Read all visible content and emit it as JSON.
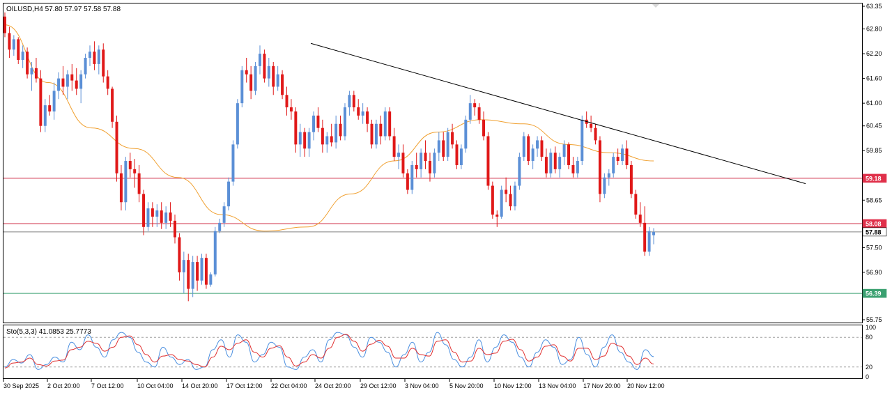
{
  "header": {
    "symbol_line": "OILUSD,H4  57.80 57.97 57.58 57.88",
    "indicator_line": "Sto(5,3,3) 41.0853 25.7773"
  },
  "colors": {
    "bull": "#5b8fd6",
    "bear": "#e01818",
    "ma": "#f0a030",
    "trendline": "#000000",
    "resistance_line": "#d0304a",
    "support_line": "#3aa070",
    "stoch_main": "#4a8fe0",
    "stoch_signal": "#e03030",
    "level_tag_red": "#e0304a",
    "level_tag_green": "#3aa070"
  },
  "chart_data": [
    {
      "type": "candlestick",
      "symbol": "OILUSD",
      "timeframe": "H4",
      "ylim": [
        55.75,
        63.35
      ],
      "y_ticks": [
        "63.35",
        "62.80",
        "62.20",
        "61.60",
        "61.00",
        "60.45",
        "59.85",
        "58.65",
        "57.50",
        "56.90",
        "55.75"
      ],
      "x_ticks": [
        "30 Sep 2025",
        "2 Oct 20:00",
        "7 Oct 12:00",
        "10 Oct 04:00",
        "14 Oct 20:00",
        "17 Oct 12:00",
        "22 Oct 04:00",
        "24 Oct 20:00",
        "29 Oct 12:00",
        "3 Nov 04:00",
        "5 Nov 20:00",
        "10 Nov 12:00",
        "13 Nov 04:00",
        "17 Nov 20:00",
        "20 Nov 12:00"
      ],
      "ohlc": [
        [
          63.1,
          63.2,
          62.6,
          62.7
        ],
        [
          62.7,
          62.85,
          62.1,
          62.3
        ],
        [
          62.3,
          62.65,
          62.15,
          62.55
        ],
        [
          62.55,
          62.6,
          61.95,
          62.05
        ],
        [
          62.05,
          62.4,
          61.85,
          62.25
        ],
        [
          62.25,
          62.35,
          61.6,
          61.7
        ],
        [
          61.7,
          62.0,
          61.3,
          61.85
        ],
        [
          61.85,
          62.1,
          61.5,
          61.6
        ],
        [
          61.6,
          61.8,
          60.3,
          60.45
        ],
        [
          60.45,
          61.1,
          60.3,
          60.95
        ],
        [
          60.95,
          61.2,
          60.7,
          60.8
        ],
        [
          60.8,
          61.5,
          60.6,
          61.3
        ],
        [
          61.3,
          61.75,
          61.1,
          61.6
        ],
        [
          61.6,
          61.9,
          61.2,
          61.4
        ],
        [
          61.4,
          61.8,
          61.1,
          61.7
        ],
        [
          61.7,
          61.95,
          61.3,
          61.55
        ],
        [
          61.55,
          61.85,
          61.2,
          61.35
        ],
        [
          61.35,
          61.8,
          61.0,
          61.7
        ],
        [
          61.7,
          62.2,
          61.6,
          62.1
        ],
        [
          62.1,
          62.4,
          61.9,
          62.25
        ],
        [
          62.25,
          62.5,
          61.8,
          61.95
        ],
        [
          61.95,
          62.4,
          61.7,
          62.3
        ],
        [
          62.3,
          62.45,
          61.5,
          61.65
        ],
        [
          61.65,
          61.8,
          61.2,
          61.35
        ],
        [
          61.35,
          61.4,
          60.4,
          60.55
        ],
        [
          60.55,
          60.7,
          59.1,
          59.3
        ],
        [
          59.3,
          59.5,
          58.4,
          58.6
        ],
        [
          58.6,
          59.7,
          58.4,
          59.6
        ],
        [
          59.6,
          59.8,
          59.2,
          59.4
        ],
        [
          59.4,
          59.65,
          58.95,
          59.3
        ],
        [
          59.3,
          59.5,
          58.6,
          58.8
        ],
        [
          58.8,
          58.9,
          57.8,
          58.0
        ],
        [
          58.0,
          58.6,
          57.9,
          58.45
        ],
        [
          58.45,
          58.6,
          58.0,
          58.25
        ],
        [
          58.25,
          58.55,
          58.0,
          58.4
        ],
        [
          58.4,
          58.6,
          57.95,
          58.1
        ],
        [
          58.1,
          58.5,
          57.95,
          58.35
        ],
        [
          58.35,
          58.6,
          58.0,
          58.15
        ],
        [
          58.15,
          58.3,
          57.6,
          57.75
        ],
        [
          57.75,
          57.85,
          56.7,
          56.9
        ],
        [
          56.9,
          57.4,
          56.4,
          57.2
        ],
        [
          57.2,
          57.35,
          56.2,
          56.5
        ],
        [
          56.5,
          57.3,
          56.3,
          57.15
        ],
        [
          57.15,
          57.3,
          56.45,
          56.7
        ],
        [
          56.7,
          57.35,
          56.6,
          57.25
        ],
        [
          57.25,
          57.35,
          56.5,
          56.6
        ],
        [
          56.6,
          56.9,
          56.55,
          56.85
        ],
        [
          56.85,
          58.0,
          56.8,
          57.9
        ],
        [
          57.9,
          58.2,
          57.85,
          58.1
        ],
        [
          58.1,
          58.6,
          58.0,
          58.5
        ],
        [
          58.5,
          59.2,
          58.4,
          59.1
        ],
        [
          59.1,
          60.1,
          59.0,
          60.0
        ],
        [
          60.0,
          61.1,
          59.9,
          61.0
        ],
        [
          61.0,
          61.9,
          60.9,
          61.8
        ],
        [
          61.8,
          62.1,
          61.5,
          61.7
        ],
        [
          61.7,
          61.9,
          61.1,
          61.3
        ],
        [
          61.3,
          62.0,
          61.2,
          61.9
        ],
        [
          61.9,
          62.4,
          61.7,
          62.2
        ],
        [
          62.2,
          62.3,
          61.5,
          61.6
        ],
        [
          61.6,
          62.1,
          61.4,
          61.9
        ],
        [
          61.9,
          62.0,
          61.2,
          61.4
        ],
        [
          61.4,
          61.9,
          61.3,
          61.7
        ],
        [
          61.7,
          61.8,
          61.1,
          61.2
        ],
        [
          61.2,
          61.4,
          60.7,
          60.9
        ],
        [
          60.9,
          61.1,
          60.6,
          60.8
        ],
        [
          60.8,
          60.9,
          59.8,
          60.0
        ],
        [
          60.0,
          60.5,
          59.7,
          60.3
        ],
        [
          60.3,
          60.4,
          59.7,
          59.9
        ],
        [
          59.9,
          60.4,
          59.7,
          60.3
        ],
        [
          60.3,
          60.8,
          60.1,
          60.7
        ],
        [
          60.7,
          60.9,
          60.3,
          60.4
        ],
        [
          60.4,
          60.6,
          59.8,
          60.0
        ],
        [
          60.0,
          60.3,
          59.8,
          60.2
        ],
        [
          60.2,
          60.5,
          59.95,
          60.05
        ],
        [
          60.05,
          60.7,
          59.9,
          60.5
        ],
        [
          60.5,
          60.7,
          60.1,
          60.2
        ],
        [
          60.2,
          61.0,
          60.1,
          60.9
        ],
        [
          60.9,
          61.3,
          60.7,
          61.2
        ],
        [
          61.2,
          61.3,
          60.8,
          60.9
        ],
        [
          60.9,
          61.1,
          60.6,
          60.7
        ],
        [
          60.7,
          61.0,
          60.5,
          60.8
        ],
        [
          60.8,
          60.9,
          60.3,
          60.5
        ],
        [
          60.5,
          60.6,
          59.9,
          60.0
        ],
        [
          60.0,
          60.6,
          59.9,
          60.5
        ],
        [
          60.5,
          60.7,
          60.0,
          60.2
        ],
        [
          60.2,
          60.9,
          60.1,
          60.8
        ],
        [
          60.8,
          60.9,
          60.1,
          60.2
        ],
        [
          60.2,
          60.4,
          59.6,
          59.7
        ],
        [
          59.7,
          60.0,
          59.4,
          59.8
        ],
        [
          59.8,
          60.0,
          59.2,
          59.3
        ],
        [
          59.3,
          59.4,
          58.8,
          58.9
        ],
        [
          58.9,
          59.6,
          58.8,
          59.5
        ],
        [
          59.5,
          59.8,
          59.2,
          59.4
        ],
        [
          59.4,
          59.9,
          59.2,
          59.8
        ],
        [
          59.8,
          60.1,
          59.4,
          59.6
        ],
        [
          59.6,
          59.8,
          59.1,
          59.3
        ],
        [
          59.3,
          59.9,
          59.2,
          59.8
        ],
        [
          59.8,
          60.3,
          59.6,
          60.1
        ],
        [
          60.1,
          60.3,
          59.6,
          59.7
        ],
        [
          59.7,
          60.4,
          59.6,
          60.3
        ],
        [
          60.3,
          60.5,
          59.9,
          60.0
        ],
        [
          60.0,
          60.1,
          59.4,
          59.5
        ],
        [
          59.5,
          60.0,
          59.4,
          59.9
        ],
        [
          59.9,
          60.7,
          59.8,
          60.6
        ],
        [
          60.6,
          61.2,
          60.5,
          61.0
        ],
        [
          61.0,
          61.1,
          60.7,
          60.9
        ],
        [
          60.9,
          61.0,
          60.5,
          60.6
        ],
        [
          60.6,
          60.8,
          60.1,
          60.2
        ],
        [
          60.2,
          60.3,
          58.9,
          59.0
        ],
        [
          59.0,
          59.1,
          58.2,
          58.3
        ],
        [
          58.3,
          58.4,
          58.0,
          58.25
        ],
        [
          58.25,
          59.0,
          58.2,
          58.9
        ],
        [
          58.9,
          59.2,
          58.6,
          58.8
        ],
        [
          58.8,
          59.0,
          58.4,
          58.5
        ],
        [
          58.5,
          59.1,
          58.4,
          59.0
        ],
        [
          59.0,
          59.8,
          58.9,
          59.7
        ],
        [
          59.7,
          60.3,
          59.6,
          60.2
        ],
        [
          60.2,
          60.25,
          59.5,
          59.6
        ],
        [
          59.6,
          60.0,
          59.4,
          59.9
        ],
        [
          59.9,
          60.2,
          59.7,
          60.1
        ],
        [
          60.1,
          60.2,
          59.6,
          59.7
        ],
        [
          59.7,
          59.9,
          59.2,
          59.3
        ],
        [
          59.3,
          59.9,
          59.2,
          59.8
        ],
        [
          59.8,
          59.95,
          59.3,
          59.4
        ],
        [
          59.4,
          59.8,
          59.2,
          59.7
        ],
        [
          59.7,
          60.1,
          59.5,
          60.0
        ],
        [
          60.0,
          60.05,
          59.4,
          59.5
        ],
        [
          59.5,
          59.7,
          59.2,
          59.3
        ],
        [
          59.3,
          59.7,
          59.2,
          59.6
        ],
        [
          59.6,
          60.7,
          59.5,
          60.6
        ],
        [
          60.6,
          60.8,
          60.4,
          60.5
        ],
        [
          60.5,
          60.7,
          60.3,
          60.4
        ],
        [
          60.4,
          60.5,
          60.0,
          60.1
        ],
        [
          60.1,
          60.2,
          58.6,
          58.8
        ],
        [
          58.8,
          59.3,
          58.7,
          59.2
        ],
        [
          59.2,
          59.4,
          59.0,
          59.3
        ],
        [
          59.3,
          59.8,
          59.2,
          59.7
        ],
        [
          59.7,
          59.9,
          59.5,
          59.6
        ],
        [
          59.6,
          60.0,
          59.5,
          59.9
        ],
        [
          59.9,
          60.1,
          59.4,
          59.5
        ],
        [
          59.5,
          59.6,
          58.7,
          58.8
        ],
        [
          58.8,
          58.9,
          58.2,
          58.3
        ],
        [
          58.3,
          58.6,
          58.0,
          58.1
        ],
        [
          58.1,
          58.5,
          57.3,
          57.4
        ],
        [
          57.4,
          58.0,
          57.3,
          57.9
        ],
        [
          57.8,
          57.97,
          57.58,
          57.88
        ]
      ],
      "indicators": {
        "moving_average": [
          62.9,
          61.5,
          60.4,
          59.9,
          59.2,
          58.3,
          57.9,
          58.0,
          58.8,
          59.6,
          60.3,
          60.6,
          60.5,
          60.0,
          59.8,
          59.6
        ],
        "trendline": {
          "start": [
            "24 Oct 20:00",
            62.45
          ],
          "end": [
            "after 20 Nov 12:00",
            59.05
          ]
        },
        "horizontal_levels": [
          {
            "value": 59.18,
            "label": "59.18",
            "style": "resistance"
          },
          {
            "value": 58.08,
            "label": "58.08",
            "style": "resistance"
          },
          {
            "value": 57.88,
            "label": "57.88",
            "style": "current"
          },
          {
            "value": 56.39,
            "label": "56.39",
            "style": "support"
          }
        ]
      }
    },
    {
      "type": "line",
      "name": "Sto(5,3,3)",
      "ylim": [
        0,
        100
      ],
      "y_ticks": [
        "100",
        "80",
        "20",
        "0"
      ],
      "levels": [
        80,
        20
      ],
      "series": [
        {
          "name": "main",
          "values": [
            20,
            35,
            28,
            45,
            15,
            25,
            40,
            30,
            70,
            55,
            85,
            60,
            40,
            75,
            90,
            80,
            50,
            30,
            20,
            60,
            40,
            25,
            35,
            15,
            20,
            55,
            75,
            40,
            85,
            70,
            30,
            45,
            70,
            60,
            20,
            15,
            40,
            55,
            30,
            75,
            90,
            85,
            60,
            40,
            80,
            70,
            50,
            20,
            45,
            70,
            30,
            50,
            90,
            65,
            35,
            20,
            40,
            75,
            30,
            60,
            85,
            70,
            40,
            20,
            50,
            75,
            60,
            25,
            35,
            80,
            45,
            20,
            60,
            85,
            50,
            30,
            15,
            55,
            41
          ]
        },
        {
          "name": "signal",
          "values": [
            18,
            28,
            30,
            38,
            25,
            22,
            32,
            34,
            55,
            60,
            72,
            68,
            52,
            60,
            80,
            83,
            65,
            45,
            30,
            42,
            45,
            35,
            32,
            25,
            20,
            40,
            62,
            55,
            68,
            75,
            50,
            40,
            58,
            63,
            40,
            22,
            30,
            45,
            38,
            58,
            80,
            86,
            72,
            52,
            66,
            74,
            62,
            38,
            38,
            58,
            45,
            42,
            72,
            75,
            50,
            30,
            32,
            58,
            45,
            48,
            72,
            76,
            55,
            32,
            40,
            62,
            65,
            42,
            32,
            58,
            58,
            35,
            42,
            68,
            62,
            42,
            25,
            38,
            26
          ]
        }
      ]
    }
  ]
}
